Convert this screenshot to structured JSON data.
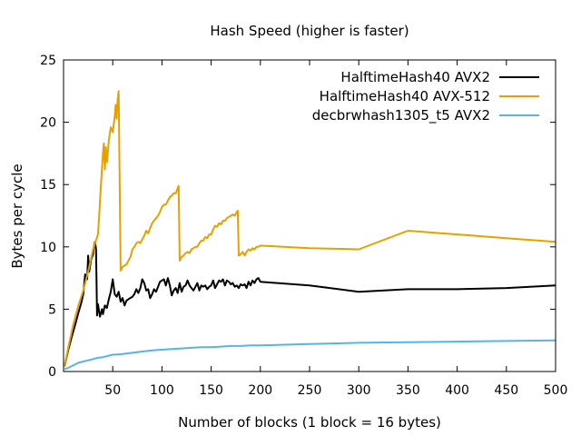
{
  "chart_data": {
    "type": "line",
    "title": "Hash Speed (higher is faster)",
    "xlabel": "Number of blocks (1 block = 16 bytes)",
    "ylabel": "Bytes per cycle",
    "xlim": [
      0,
      500
    ],
    "ylim": [
      0,
      25
    ],
    "xticks": [
      50,
      100,
      150,
      200,
      250,
      300,
      350,
      400,
      450,
      500
    ],
    "yticks": [
      0,
      5,
      10,
      15,
      20,
      25
    ],
    "grid": false,
    "legend_position": "top-right",
    "series": [
      {
        "name": "HalftimeHash40 AVX2",
        "color": "#000000",
        "points": [
          [
            1,
            0.4
          ],
          [
            5,
            1.8
          ],
          [
            8,
            2.7
          ],
          [
            12,
            3.8
          ],
          [
            15,
            4.7
          ],
          [
            18,
            5.5
          ],
          [
            20,
            6.2
          ],
          [
            22,
            7.8
          ],
          [
            24,
            7.4
          ],
          [
            25,
            9.3
          ],
          [
            26,
            8.0
          ],
          [
            28,
            9.0
          ],
          [
            30,
            9.4
          ],
          [
            31,
            10.1
          ],
          [
            32,
            10.4
          ],
          [
            33,
            9.8
          ],
          [
            34,
            4.5
          ],
          [
            35,
            5.4
          ],
          [
            37,
            4.4
          ],
          [
            39,
            5.0
          ],
          [
            40,
            4.6
          ],
          [
            42,
            5.3
          ],
          [
            44,
            5.1
          ],
          [
            46,
            5.8
          ],
          [
            48,
            6.4
          ],
          [
            50,
            7.4
          ],
          [
            52,
            6.2
          ],
          [
            54,
            6.0
          ],
          [
            56,
            6.4
          ],
          [
            58,
            5.6
          ],
          [
            60,
            5.9
          ],
          [
            62,
            5.3
          ],
          [
            64,
            5.7
          ],
          [
            66,
            5.8
          ],
          [
            70,
            6.0
          ],
          [
            72,
            6.2
          ],
          [
            74,
            6.6
          ],
          [
            76,
            6.3
          ],
          [
            78,
            6.7
          ],
          [
            80,
            7.4
          ],
          [
            82,
            7.1
          ],
          [
            84,
            6.5
          ],
          [
            86,
            6.6
          ],
          [
            88,
            5.9
          ],
          [
            90,
            6.2
          ],
          [
            92,
            6.6
          ],
          [
            94,
            6.4
          ],
          [
            96,
            6.8
          ],
          [
            98,
            7.2
          ],
          [
            100,
            7.3
          ],
          [
            102,
            7.4
          ],
          [
            104,
            6.9
          ],
          [
            106,
            7.5
          ],
          [
            108,
            6.9
          ],
          [
            110,
            6.1
          ],
          [
            112,
            6.5
          ],
          [
            114,
            6.7
          ],
          [
            116,
            6.3
          ],
          [
            118,
            7.1
          ],
          [
            120,
            6.4
          ],
          [
            122,
            6.8
          ],
          [
            124,
            6.9
          ],
          [
            126,
            7.3
          ],
          [
            128,
            6.9
          ],
          [
            130,
            6.7
          ],
          [
            132,
            6.5
          ],
          [
            134,
            6.8
          ],
          [
            136,
            7.1
          ],
          [
            138,
            6.5
          ],
          [
            140,
            6.9
          ],
          [
            142,
            6.8
          ],
          [
            144,
            6.9
          ],
          [
            146,
            6.6
          ],
          [
            148,
            6.8
          ],
          [
            150,
            6.9
          ],
          [
            152,
            7.3
          ],
          [
            154,
            6.7
          ],
          [
            156,
            7.0
          ],
          [
            158,
            7.3
          ],
          [
            160,
            7.2
          ],
          [
            162,
            7.4
          ],
          [
            164,
            6.9
          ],
          [
            166,
            7.3
          ],
          [
            168,
            7.2
          ],
          [
            170,
            7.0
          ],
          [
            172,
            7.1
          ],
          [
            174,
            6.8
          ],
          [
            176,
            6.9
          ],
          [
            178,
            6.7
          ],
          [
            180,
            7.0
          ],
          [
            182,
            6.9
          ],
          [
            184,
            7.0
          ],
          [
            186,
            6.7
          ],
          [
            188,
            7.2
          ],
          [
            190,
            6.9
          ],
          [
            192,
            7.3
          ],
          [
            194,
            7.1
          ],
          [
            196,
            7.4
          ],
          [
            198,
            7.5
          ],
          [
            200,
            7.2
          ],
          [
            250,
            6.9
          ],
          [
            300,
            6.4
          ],
          [
            350,
            6.6
          ],
          [
            400,
            6.6
          ],
          [
            450,
            6.7
          ],
          [
            500,
            6.9
          ]
        ]
      },
      {
        "name": "HalftimeHash40 AVX-512",
        "color": "#e6a000",
        "points": [
          [
            1,
            0.4
          ],
          [
            5,
            2.0
          ],
          [
            10,
            3.8
          ],
          [
            15,
            5.3
          ],
          [
            20,
            6.5
          ],
          [
            25,
            8.0
          ],
          [
            30,
            9.8
          ],
          [
            35,
            11.0
          ],
          [
            36,
            12.2
          ],
          [
            38,
            15.0
          ],
          [
            40,
            17.5
          ],
          [
            41,
            18.3
          ],
          [
            42,
            16.2
          ],
          [
            43,
            18.0
          ],
          [
            44,
            16.8
          ],
          [
            45,
            17.6
          ],
          [
            46,
            18.6
          ],
          [
            48,
            19.6
          ],
          [
            50,
            19.2
          ],
          [
            52,
            20.5
          ],
          [
            53,
            21.4
          ],
          [
            54,
            20.3
          ],
          [
            55,
            21.8
          ],
          [
            56,
            22.5
          ],
          [
            58,
            8.1
          ],
          [
            60,
            8.4
          ],
          [
            62,
            8.5
          ],
          [
            64,
            8.6
          ],
          [
            66,
            8.9
          ],
          [
            68,
            9.2
          ],
          [
            70,
            9.8
          ],
          [
            72,
            10.0
          ],
          [
            74,
            10.3
          ],
          [
            76,
            10.4
          ],
          [
            78,
            10.3
          ],
          [
            80,
            10.6
          ],
          [
            82,
            10.9
          ],
          [
            84,
            11.3
          ],
          [
            86,
            11.1
          ],
          [
            88,
            11.5
          ],
          [
            90,
            11.9
          ],
          [
            92,
            12.1
          ],
          [
            94,
            12.3
          ],
          [
            96,
            12.5
          ],
          [
            98,
            12.8
          ],
          [
            100,
            13.2
          ],
          [
            102,
            13.4
          ],
          [
            104,
            13.4
          ],
          [
            106,
            13.7
          ],
          [
            108,
            14.0
          ],
          [
            110,
            14.1
          ],
          [
            112,
            14.3
          ],
          [
            114,
            14.3
          ],
          [
            116,
            14.7
          ],
          [
            117,
            14.9
          ],
          [
            118,
            8.9
          ],
          [
            120,
            9.2
          ],
          [
            122,
            9.3
          ],
          [
            124,
            9.5
          ],
          [
            126,
            9.6
          ],
          [
            128,
            9.5
          ],
          [
            130,
            9.8
          ],
          [
            132,
            9.9
          ],
          [
            134,
            10.0
          ],
          [
            136,
            10.0
          ],
          [
            138,
            10.3
          ],
          [
            140,
            10.5
          ],
          [
            142,
            10.5
          ],
          [
            144,
            10.8
          ],
          [
            146,
            10.7
          ],
          [
            148,
            11.0
          ],
          [
            150,
            11.0
          ],
          [
            152,
            11.4
          ],
          [
            154,
            11.7
          ],
          [
            156,
            11.6
          ],
          [
            158,
            11.9
          ],
          [
            160,
            11.8
          ],
          [
            162,
            12.1
          ],
          [
            164,
            12.1
          ],
          [
            166,
            12.3
          ],
          [
            168,
            12.4
          ],
          [
            170,
            12.5
          ],
          [
            172,
            12.6
          ],
          [
            174,
            12.5
          ],
          [
            176,
            12.8
          ],
          [
            177,
            12.9
          ],
          [
            178,
            9.3
          ],
          [
            180,
            9.4
          ],
          [
            182,
            9.6
          ],
          [
            184,
            9.3
          ],
          [
            186,
            9.6
          ],
          [
            188,
            9.8
          ],
          [
            190,
            9.7
          ],
          [
            192,
            9.9
          ],
          [
            194,
            9.8
          ],
          [
            196,
            10.0
          ],
          [
            198,
            10.0
          ],
          [
            200,
            10.1
          ],
          [
            250,
            9.9
          ],
          [
            300,
            9.8
          ],
          [
            350,
            11.3
          ],
          [
            400,
            11.0
          ],
          [
            450,
            10.7
          ],
          [
            500,
            10.4
          ]
        ]
      },
      {
        "name": "decbrwhash1305_t5 AVX2",
        "color": "#56b4e9",
        "points": [
          [
            1,
            0.2
          ],
          [
            5,
            0.3
          ],
          [
            10,
            0.5
          ],
          [
            15,
            0.7
          ],
          [
            20,
            0.8
          ],
          [
            25,
            0.9
          ],
          [
            30,
            1.0
          ],
          [
            35,
            1.1
          ],
          [
            40,
            1.15
          ],
          [
            45,
            1.25
          ],
          [
            50,
            1.35
          ],
          [
            60,
            1.4
          ],
          [
            70,
            1.5
          ],
          [
            80,
            1.6
          ],
          [
            90,
            1.7
          ],
          [
            100,
            1.75
          ],
          [
            110,
            1.8
          ],
          [
            120,
            1.85
          ],
          [
            130,
            1.9
          ],
          [
            140,
            1.95
          ],
          [
            150,
            1.95
          ],
          [
            160,
            2.0
          ],
          [
            170,
            2.05
          ],
          [
            180,
            2.05
          ],
          [
            190,
            2.1
          ],
          [
            200,
            2.1
          ],
          [
            250,
            2.2
          ],
          [
            300,
            2.3
          ],
          [
            350,
            2.35
          ],
          [
            400,
            2.4
          ],
          [
            450,
            2.45
          ],
          [
            500,
            2.5
          ]
        ]
      }
    ]
  }
}
